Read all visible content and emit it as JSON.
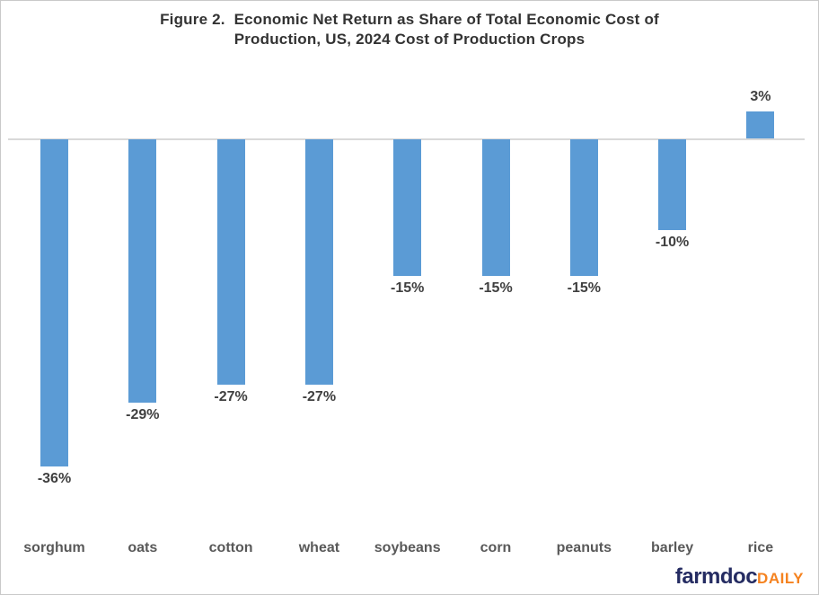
{
  "title_lines": [
    "Figure 2.  Economic Net Return as Share of Total Economic Cost of",
    "Production, US, 2024 Cost of Production Crops"
  ],
  "chart_data": {
    "type": "bar",
    "title": "Figure 2. Economic Net Return as Share of Total Economic Cost of Production, US, 2024 Cost of Production Crops",
    "categories": [
      "sorghum",
      "oats",
      "cotton",
      "wheat",
      "soybeans",
      "corn",
      "peanuts",
      "barley",
      "rice"
    ],
    "values": [
      -36,
      -29,
      -27,
      -27,
      -15,
      -15,
      -15,
      -10,
      3
    ],
    "data_labels": [
      "-36%",
      "-29%",
      "-27%",
      "-27%",
      "-15%",
      "-15%",
      "-15%",
      "-10%",
      "3%"
    ],
    "xlabel": "",
    "ylabel": "",
    "ylim": [
      -40,
      10
    ],
    "grid": false,
    "legend": "none",
    "baseline": 0,
    "bar_color": "#5b9bd5",
    "axis_line_color": "#d9d9d9",
    "data_label_color": "#404040",
    "category_label_color": "#595959",
    "title_color": "#333333"
  },
  "branding": {
    "farmdoc": "farmdoc",
    "daily": "DAILY",
    "farmdoc_color": "#252c62",
    "daily_color": "#f5821f"
  }
}
